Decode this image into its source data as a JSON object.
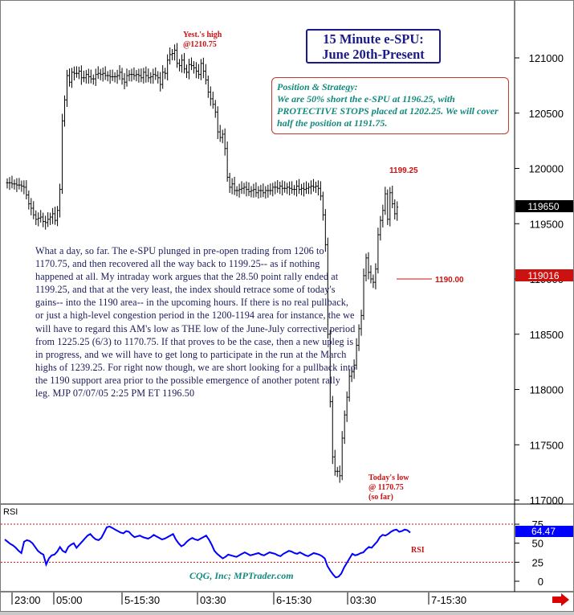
{
  "title_box": {
    "line1": "15 Minute e-SPU:",
    "line2": "June 20th-Present"
  },
  "strategy": {
    "heading": "Position & Strategy:",
    "body": "We are 50% short the e-SPU at 1196.25, with PROTECTIVE STOPS placed at 1202.25. We will cover half the position at 1191.75."
  },
  "annotations": {
    "yest_high_1": "Yest.'s high",
    "yest_high_2": "@1210.75",
    "peak_label": "1199.25",
    "support_label": "1190.00",
    "low_1": "Today's low",
    "low_2": "@ 1170.75",
    "low_3": "(so far)",
    "rsi_series_label": "RSI",
    "watermark": "CQG, Inc; MPTrader.com"
  },
  "commentary": "What a day, so far. The e-SPU plunged in pre-open trading from 1206 to 1170.75, and then recovered all the way back to 1199.25-- as if nothing happened at all. My intraday work argues that the 28.50 point rally ended at 1199.25, and that at the very least, the index should retrace some of today's gains-- into the 1190 area-- in the upcoming hours. If there is no real pullback, or just a high-level congestion period in the 1200-1194 area for instance, the we will have to regard this AM's low as THE low of the June-July corrective period from 1225.25 (6/3) to 1170.75. If that proves to be the case, then a new upleg is in progress, and we will have to get long to participate in the run at the March highs of 1239.25. For right now though, we are short looking for a pullback into the 1190 support area prior to the possible emergence of another potent rally leg.  MJP 07/07/05 2:25 PM ET 1196.50",
  "price_axis": {
    "ticks": [
      "121000",
      "120500",
      "120000",
      "119500",
      "119000",
      "118500",
      "118000",
      "117500",
      "117000"
    ],
    "last_price_tag": "119650",
    "support_tag": "119016",
    "colors": {
      "last_price_bg": "#000000",
      "support_bg": "#cc1111"
    }
  },
  "rsi_panel": {
    "label": "RSI",
    "ticks": [
      "75",
      "50",
      "25",
      "0"
    ],
    "value_tag": "64.47",
    "colors": {
      "line": "#0000ff",
      "bands": "#cc1111",
      "value_bg": "#0000ff"
    }
  },
  "time_axis": {
    "labels": [
      "23:00",
      "05:00",
      "5-15:30",
      "03:30",
      "6-15:30",
      "03:30",
      "7-15:30"
    ]
  },
  "chart_data": [
    {
      "type": "ohlc",
      "name": "15 Minute e-SPU",
      "ylim": [
        1167.0,
        1213.0
      ],
      "y_ticks": [
        1170,
        1175,
        1180,
        1185,
        1190,
        1195,
        1200,
        1205,
        1210
      ],
      "reference_lines": [
        {
          "label": "1190.00",
          "y": 1190.0
        }
      ],
      "closes": [
        1198.7,
        1198.7,
        1198.6,
        1198.6,
        1198.5,
        1198.5,
        1198.4,
        1198.3,
        1197.6,
        1196.8,
        1196.4,
        1195.8,
        1195.4,
        1195.5,
        1195.6,
        1195.2,
        1195.1,
        1195.4,
        1195.6,
        1195.9,
        1195.3,
        1196.2,
        1198.1,
        1204.3,
        1206.2,
        1208.4,
        1207.8,
        1208.7,
        1208.6,
        1208.6,
        1208.8,
        1208.2,
        1208.2,
        1208.5,
        1208.3,
        1208.1,
        1208.1,
        1208.5,
        1208.6,
        1208.5,
        1208.6,
        1208.4,
        1208.4,
        1208.3,
        1208.3,
        1208.3,
        1208.4,
        1208.7,
        1208.1,
        1207.8,
        1208.4,
        1208.5,
        1208.5,
        1208.4,
        1208.5,
        1208.4,
        1208.2,
        1208.7,
        1208.4,
        1208.2,
        1208.3,
        1208.5,
        1208.4,
        1208.2,
        1207.6,
        1208.7,
        1208.6,
        1209.8,
        1210.3,
        1210.4,
        1210.7,
        1209.5,
        1209.3,
        1209.8,
        1209.0,
        1208.7,
        1209.4,
        1209.3,
        1209.1,
        1208.8,
        1208.5,
        1209.5,
        1208.8,
        1208.0,
        1206.9,
        1206.3,
        1205.8,
        1205.1,
        1203.3,
        1202.8,
        1203.1,
        1201.8,
        1199.2,
        1198.3,
        1198.6,
        1198.0,
        1198.0,
        1198.1,
        1198.2,
        1198.3,
        1198.1,
        1197.9,
        1198.0,
        1198.1,
        1197.8,
        1198.0,
        1198.0,
        1197.8,
        1198.0,
        1198.0,
        1198.0,
        1198.3,
        1198.3,
        1198.2,
        1198.4,
        1198.2,
        1198.2,
        1198.3,
        1198.2,
        1198.1,
        1198.1,
        1198.4,
        1198.1,
        1198.2,
        1198.1,
        1198.2,
        1198.3,
        1198.4,
        1198.3,
        1198.4,
        1198.2,
        1197.5,
        1195.8,
        1193.1,
        1185.0,
        1178.9,
        1173.9,
        1172.6,
        1172.6,
        1172.2,
        1175.6,
        1177.7,
        1179.3,
        1181.2,
        1181.6,
        1182.2,
        1184.0,
        1185.5,
        1186.7,
        1190.3,
        1191.9,
        1190.6,
        1190.0,
        1189.7,
        1190.9,
        1194.0,
        1195.3,
        1196.2,
        1197.7,
        1195.4,
        1197.8,
        1196.8,
        1195.9,
        1196.5
      ]
    },
    {
      "type": "line",
      "name": "RSI",
      "ylim": [
        0,
        100
      ],
      "y_ticks": [
        0,
        25,
        50,
        75
      ],
      "reference_lines": [
        25,
        75
      ],
      "values": [
        55,
        52,
        49,
        47,
        44,
        40,
        37,
        52,
        54,
        53,
        50,
        45,
        40,
        37,
        35,
        22,
        30,
        34,
        35,
        39,
        45,
        40,
        38,
        45,
        48,
        50,
        44,
        48,
        52,
        56,
        60,
        62,
        58,
        55,
        54,
        57,
        64,
        71,
        72,
        70,
        68,
        66,
        64,
        63,
        66,
        65,
        61,
        58,
        59,
        60,
        58,
        57,
        56,
        58,
        61,
        59,
        57,
        55,
        56,
        58,
        60,
        62,
        55,
        50,
        46,
        48,
        52,
        55,
        57,
        55,
        54,
        56,
        58,
        60,
        55,
        48,
        40,
        36,
        33,
        30,
        32,
        35,
        34,
        33,
        32,
        34,
        36,
        38,
        36,
        34,
        35,
        36,
        37,
        35,
        34,
        36,
        38,
        37,
        36,
        34,
        33,
        36,
        38,
        40,
        39,
        37,
        36,
        38,
        36,
        34,
        33,
        35,
        37,
        36,
        35,
        33,
        30,
        20,
        14,
        9,
        5,
        6,
        10,
        18,
        24,
        30,
        36,
        34,
        35,
        37,
        38,
        42,
        45,
        44,
        48,
        52,
        58,
        61,
        60,
        62,
        65,
        67,
        68,
        65,
        66,
        68,
        67,
        64
      ]
    }
  ]
}
